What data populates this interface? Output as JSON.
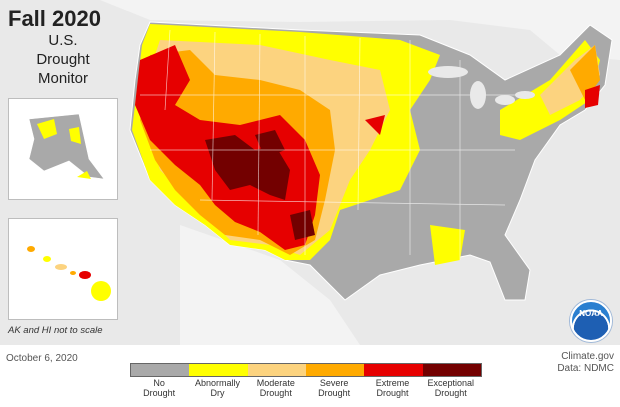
{
  "title": "Fall 2020",
  "subtitle_lines": [
    "U.S.",
    "Drought",
    "Monitor"
  ],
  "inset_note": "AK and HI not to scale",
  "date": "October 6, 2020",
  "credit_line1": "Climate.gov",
  "credit_line2": "Data: NDMC",
  "logo_text": "NOAA",
  "legend": [
    {
      "label_line1": "No",
      "label_line2": "Drought",
      "color": "#a9a9a9"
    },
    {
      "label_line1": "Abnormally",
      "label_line2": "Dry",
      "color": "#ffff00"
    },
    {
      "label_line1": "Moderate",
      "label_line2": "Drought",
      "color": "#fcd37f"
    },
    {
      "label_line1": "Severe",
      "label_line2": "Drought",
      "color": "#ffaa00"
    },
    {
      "label_line1": "Extreme",
      "label_line2": "Drought",
      "color": "#e60000"
    },
    {
      "label_line1": "Exceptional",
      "label_line2": "Drought",
      "color": "#730000"
    }
  ]
}
